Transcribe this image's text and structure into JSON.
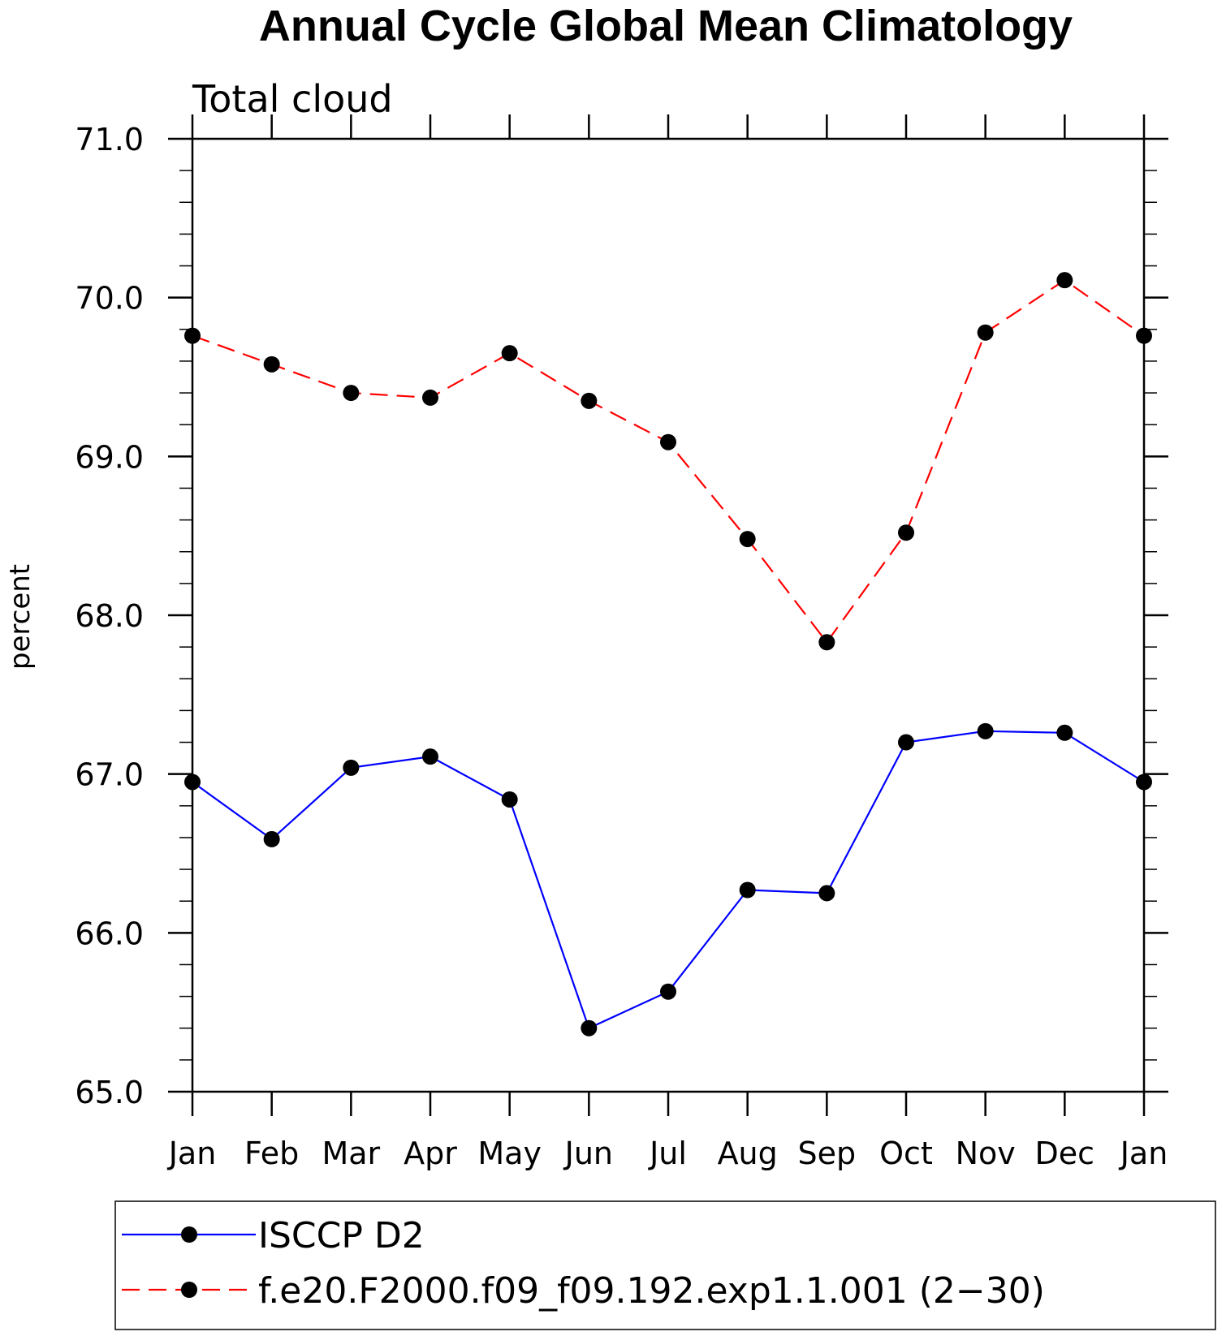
{
  "chart_data": {
    "type": "line",
    "title": "Annual Cycle Global Mean Climatology",
    "subtitle": "Total cloud",
    "xlabel": "",
    "ylabel": "percent",
    "categories": [
      "Jan",
      "Feb",
      "Mar",
      "Apr",
      "May",
      "Jun",
      "Jul",
      "Aug",
      "Sep",
      "Oct",
      "Nov",
      "Dec",
      "Jan"
    ],
    "ylim": [
      65.0,
      71.0
    ],
    "yticks": [
      "65.0",
      "66.0",
      "67.0",
      "68.0",
      "69.0",
      "70.0",
      "71.0"
    ],
    "grid": false,
    "legend_position": "bottom",
    "series": [
      {
        "name": "ISCCP D2",
        "color": "#0000ff",
        "line_style": "solid",
        "marker": "filled-circle",
        "values": [
          66.95,
          66.59,
          67.04,
          67.11,
          66.84,
          65.4,
          65.63,
          66.27,
          66.25,
          67.2,
          67.27,
          67.26,
          66.95
        ]
      },
      {
        "name": "f.e20.F2000.f09_f09.192.exp1.1.001 (2−30)",
        "color": "#ff0000",
        "line_style": "dashed",
        "marker": "filled-circle",
        "values": [
          69.76,
          69.58,
          69.4,
          69.37,
          69.65,
          69.35,
          69.09,
          68.48,
          67.83,
          68.52,
          69.78,
          70.11,
          69.76
        ]
      }
    ]
  }
}
